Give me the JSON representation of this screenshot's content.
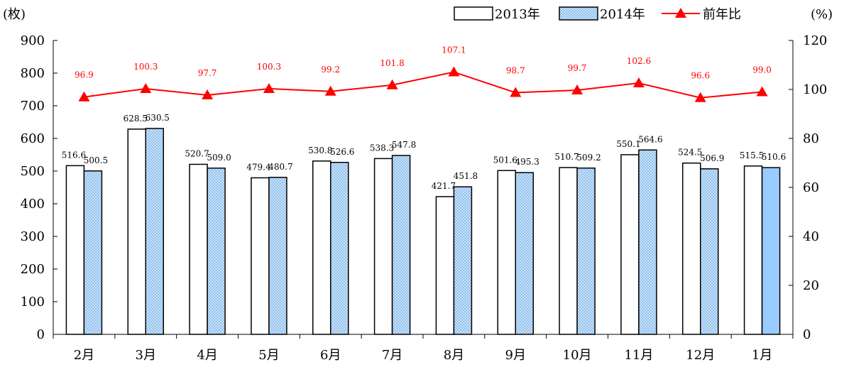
{
  "chart_data": {
    "type": "bar",
    "categories": [
      "2月",
      "3月",
      "4月",
      "5月",
      "6月",
      "7月",
      "8月",
      "9月",
      "10月",
      "11月",
      "12月",
      "1月"
    ],
    "series": [
      {
        "name": "2013年",
        "type": "bar",
        "axis": "left",
        "fill": "#ffffff",
        "values": [
          516.6,
          628.5,
          520.7,
          479.4,
          530.8,
          538.3,
          421.7,
          501.6,
          510.7,
          550.1,
          524.5,
          515.5
        ],
        "labels": [
          "516.6",
          "628.5",
          "520.7",
          "479.4",
          "530.8",
          "538.3",
          "421.7",
          "501.6",
          "510.7",
          "550.1",
          "524.5",
          "515.5"
        ]
      },
      {
        "name": "2014年",
        "type": "bar",
        "axis": "left",
        "fill": "#9ccaf5",
        "values": [
          500.5,
          630.5,
          509.0,
          480.7,
          526.6,
          547.8,
          451.8,
          495.3,
          509.2,
          564.6,
          506.9,
          510.6
        ],
        "labels": [
          "500.5",
          "630.5",
          "509.0",
          "480.7",
          "526.6",
          "547.8",
          "451.8",
          "495.3",
          "509.2",
          "564.6",
          "506.9",
          "510.6"
        ]
      },
      {
        "name": "前年比",
        "type": "line",
        "axis": "right",
        "color": "#ff0000",
        "marker": "triangle",
        "values": [
          96.9,
          100.3,
          97.7,
          100.3,
          99.2,
          101.8,
          107.1,
          98.7,
          99.7,
          102.6,
          96.6,
          99.0
        ],
        "labels": [
          "96.9",
          "100.3",
          "97.7",
          "100.3",
          "99.2",
          "101.8",
          "107.1",
          "98.7",
          "99.7",
          "102.6",
          "96.6",
          "99.0"
        ]
      }
    ],
    "y_left": {
      "unit": "(枚)",
      "min": 0,
      "max": 900,
      "step": 100,
      "ticks": [
        "0",
        "100",
        "200",
        "300",
        "400",
        "500",
        "600",
        "700",
        "800",
        "900"
      ]
    },
    "y_right": {
      "unit": "(%)",
      "min": 0,
      "max": 120,
      "step": 20,
      "ticks": [
        "0",
        "20",
        "40",
        "60",
        "80",
        "100",
        "120"
      ]
    },
    "grid": false,
    "legend_position": "top-right",
    "last_2014_bar_fill": "#99ccff"
  }
}
